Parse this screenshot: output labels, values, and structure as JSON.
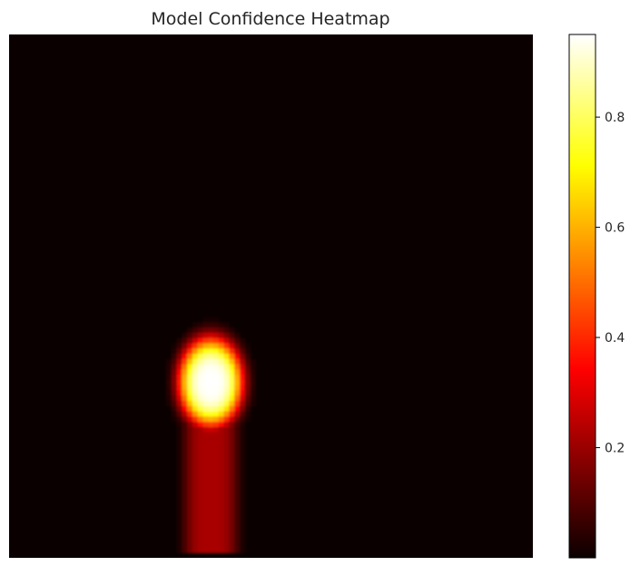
{
  "chart_data": {
    "type": "heatmap",
    "title": "Model Confidence Heatmap",
    "xlabel": "",
    "ylabel": "",
    "colormap": "hot",
    "axes_visible": false,
    "grid": false,
    "value_range": [
      0.0,
      0.95
    ],
    "colorbar": {
      "position": "right",
      "ticks": [
        0.2,
        0.4,
        0.6,
        0.8
      ],
      "tick_labels": [
        "0.2",
        "0.4",
        "0.6",
        "0.8"
      ]
    },
    "grid_size": [
      100,
      100
    ],
    "peaks": [
      {
        "name": "hotspot",
        "col": 38,
        "row": 66,
        "sigma_col": 5,
        "sigma_row": 7,
        "value": 0.95
      },
      {
        "name": "trail",
        "col": 38,
        "row_start": 72,
        "row_end": 98,
        "half_width": 5,
        "value": 0.22
      }
    ]
  }
}
